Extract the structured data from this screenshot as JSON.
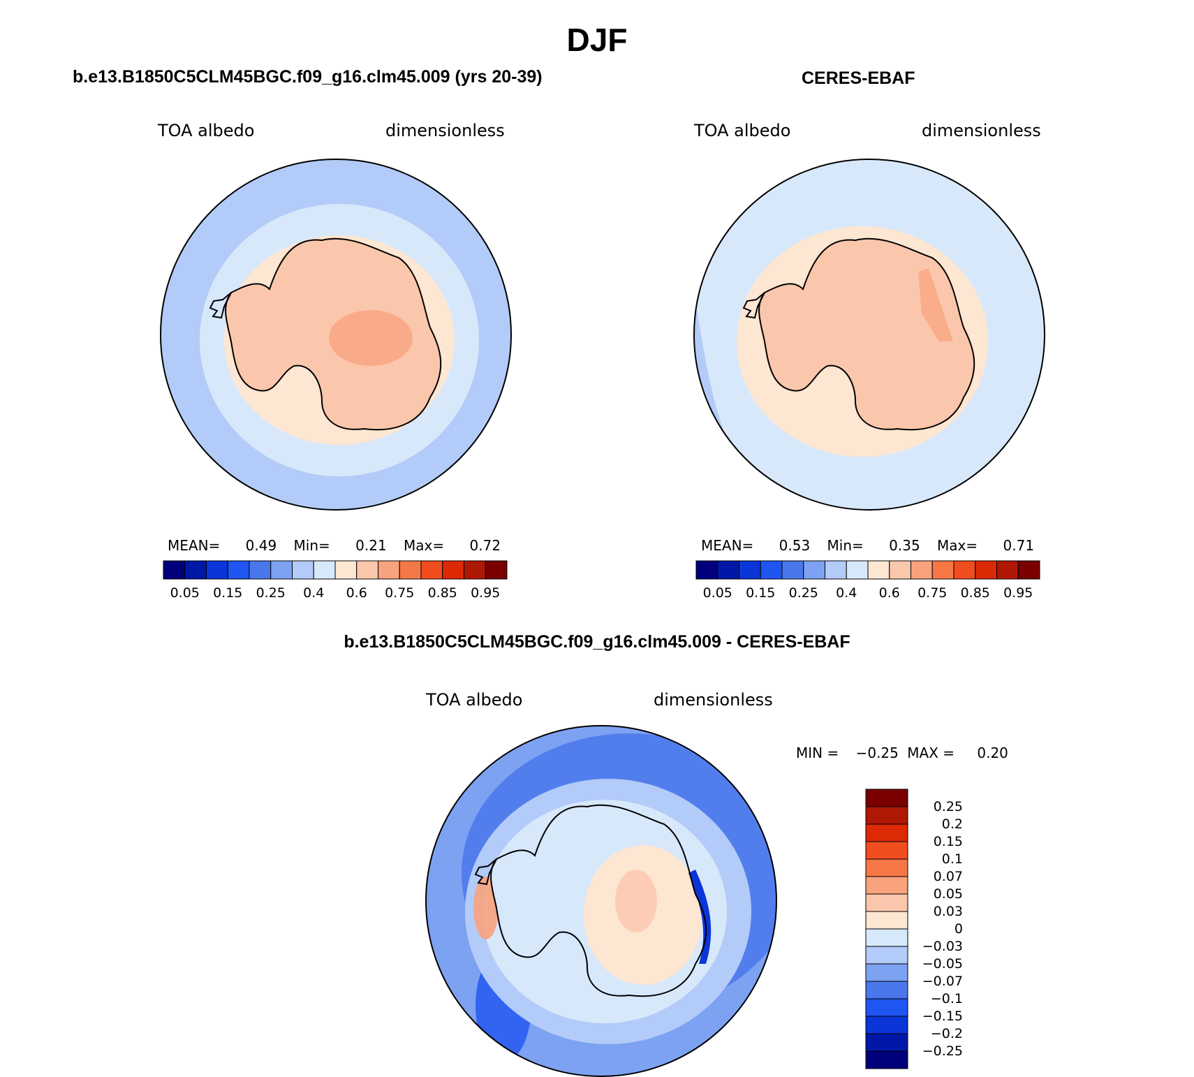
{
  "main_title": "DJF",
  "colors": {
    "abs_palette": [
      "#00007a",
      "#0018a8",
      "#0a35d8",
      "#1f55f0",
      "#4a78ec",
      "#7ea2f2",
      "#b3cbf8",
      "#d8e8fb",
      "#fde6d2",
      "#fbc7ac",
      "#f8a27e",
      "#f57846",
      "#f14d1e",
      "#dc2a06",
      "#b01806",
      "#7a0000"
    ],
    "diff_palette": [
      "#00007a",
      "#0018a8",
      "#0a35d8",
      "#1f55f0",
      "#4a78ec",
      "#7ea2f2",
      "#b3cbf8",
      "#d8e8fb",
      "#fde6d2",
      "#fbc7ac",
      "#f8a27e",
      "#f57846",
      "#f14d1e",
      "#dc2a06",
      "#b01806",
      "#7a0000"
    ]
  },
  "panels": [
    {
      "title": "b.e13.B1850C5CLM45BGC.f09_g16.clm45.009 (yrs 20-39)",
      "variable": "TOA albedo",
      "units": "dimensionless",
      "stats": {
        "mean_label": "MEAN=",
        "mean": "0.49",
        "min_label": "Min=",
        "min": "0.21",
        "max_label": "Max=",
        "max": "0.72"
      },
      "colorbar_ticks": [
        "0.05",
        "0.15",
        "0.25",
        "0.4",
        "0.6",
        "0.75",
        "0.85",
        "0.95"
      ]
    },
    {
      "title": "CERES-EBAF",
      "variable": "TOA albedo",
      "units": "dimensionless",
      "stats": {
        "mean_label": "MEAN=",
        "mean": "0.53",
        "min_label": "Min=",
        "min": "0.35",
        "max_label": "Max=",
        "max": "0.71"
      },
      "colorbar_ticks": [
        "0.05",
        "0.15",
        "0.25",
        "0.4",
        "0.6",
        "0.75",
        "0.85",
        "0.95"
      ]
    }
  ],
  "diff": {
    "title": "b.e13.B1850C5CLM45BGC.f09_g16.clm45.009 - CERES-EBAF",
    "variable": "TOA albedo",
    "units": "dimensionless",
    "min_label": "MIN =",
    "min": "−0.25",
    "max_label": "MAX =",
    "max": "0.20",
    "colorbar_ticks": [
      "0.25",
      "0.2",
      "0.15",
      "0.1",
      "0.07",
      "0.05",
      "0.03",
      "0",
      "−0.03",
      "−0.05",
      "−0.07",
      "−0.1",
      "−0.15",
      "−0.2",
      "−0.25"
    ]
  }
}
